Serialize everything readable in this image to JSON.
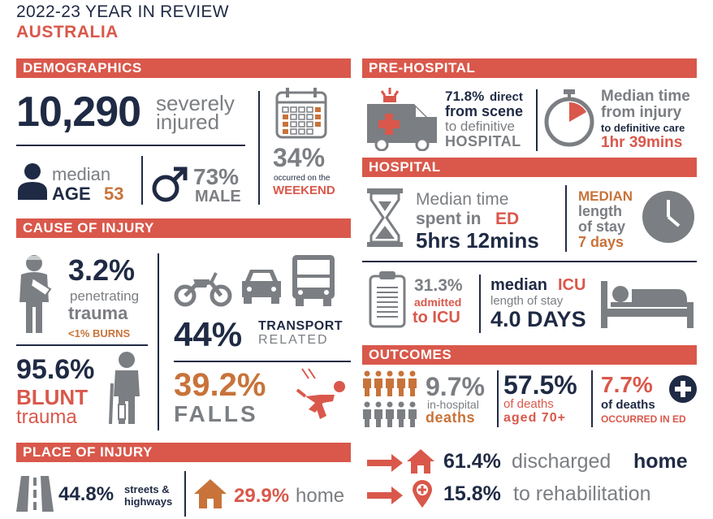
{
  "header": {
    "year": "2022-23 YEAR IN REVIEW",
    "region": "AUSTRALIA"
  },
  "colors": {
    "accent_red": "#d9584b",
    "navy": "#1f2a44",
    "orange": "#c8733a",
    "grey": "#7b7e82"
  },
  "demographics": {
    "heading": "DEMOGRAPHICS",
    "injured_count": "10,290",
    "injured_line1": "severely",
    "injured_line2": "injured",
    "weekend_pct": "34%",
    "weekend_line1": "occurred on the",
    "weekend_line2": "WEEKEND",
    "age_label": "median",
    "age_word": "AGE",
    "age_value": "53",
    "male_pct": "73%",
    "male_label": "MALE"
  },
  "cause": {
    "heading": "CAUSE OF INJURY",
    "penetrating_pct": "3.2%",
    "penetrating_line1": "penetrating",
    "penetrating_line2": "trauma",
    "burns": "<1% BURNS",
    "blunt_pct": "95.6%",
    "blunt_line1": "BLUNT",
    "blunt_line2": "trauma",
    "transport_pct": "44%",
    "transport_line1": "TRANSPORT",
    "transport_line2": "RELATED",
    "falls_pct": "39.2%",
    "falls_label": "FALLS"
  },
  "place": {
    "heading": "PLACE OF INJURY",
    "streets_pct": "44.8%",
    "streets_line1": "streets &",
    "streets_line2": "highways",
    "home_pct": "29.9%",
    "home_label": "home"
  },
  "prehospital": {
    "heading": "PRE-HOSPITAL",
    "direct_pct": "71.8%",
    "direct_word": "direct",
    "direct_line2": "from scene",
    "direct_line3": "to definitive",
    "direct_line4": "HOSPITAL",
    "time_line1": "Median time",
    "time_line2": "from injury",
    "time_line3": "to definitive care",
    "time_value": "1hr 39mins"
  },
  "hospital": {
    "heading": "HOSPITAL",
    "ed_line1": "Median time",
    "ed_line2a": "spent in",
    "ed_line2b": "ED",
    "ed_value": "5hrs 12mins",
    "stay_line1": "MEDIAN",
    "stay_line2": "length",
    "stay_line3": "of stay",
    "stay_value": "7 days",
    "icu_pct": "31.3%",
    "icu_line1": "admitted",
    "icu_line2": "to ICU",
    "icu_stay_a": "median",
    "icu_stay_b": "ICU",
    "icu_stay_line2": "length of stay",
    "icu_stay_value": "4.0 DAYS"
  },
  "outcomes": {
    "heading": "OUTCOMES",
    "death_pct": "9.7%",
    "death_line1": "in-hospital",
    "death_line2": "deaths",
    "aged_pct": "57.5%",
    "aged_line1": "of deaths",
    "aged_line2": "aged 70+",
    "ed_pct": "7.7%",
    "ed_line1": "of deaths",
    "ed_line2": "OCCURRED IN ED",
    "home_pct": "61.4%",
    "home_text": "discharged",
    "home_word": "home",
    "rehab_pct": "15.8%",
    "rehab_text": "to rehabilitation"
  }
}
